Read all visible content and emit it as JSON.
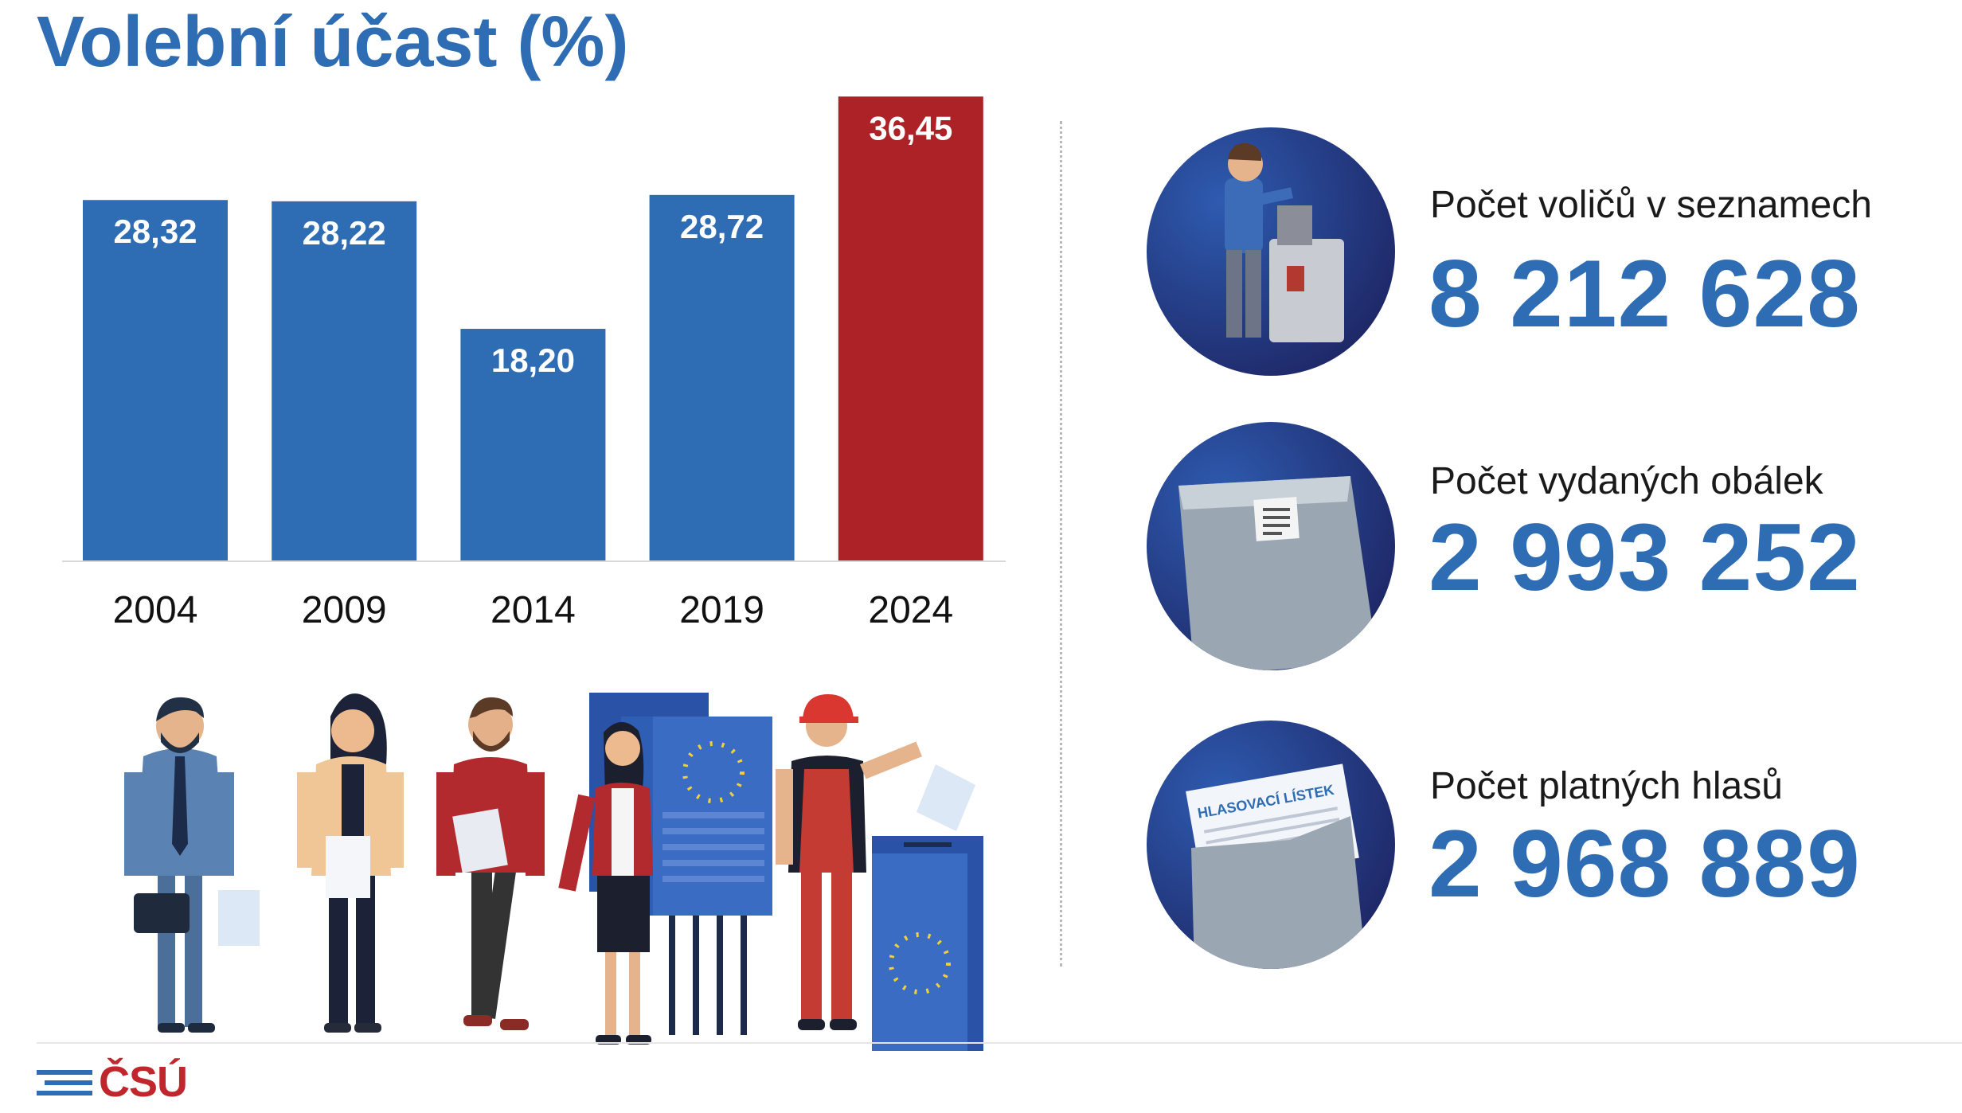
{
  "title": "Volební účast (%)",
  "chart_data": {
    "type": "bar",
    "categories": [
      "2004",
      "2009",
      "2014",
      "2019",
      "2024"
    ],
    "values": [
      28.32,
      28.22,
      18.2,
      28.72,
      36.45
    ],
    "value_labels": [
      "28,32",
      "28,22",
      "18,20",
      "28,72",
      "36,45"
    ],
    "ylim": [
      0,
      40
    ],
    "colors": [
      "#2e6db4",
      "#2e6db4",
      "#2e6db4",
      "#2e6db4",
      "#ac2226"
    ],
    "grid": false,
    "legend": "none"
  },
  "stats": [
    {
      "label": "Počet voličů v seznamech",
      "value": "8 212 628",
      "icon": "voter-ballot-box-icon"
    },
    {
      "label": "Počet vydaných obálek",
      "value": "2 993 252",
      "icon": "envelope-icon"
    },
    {
      "label": "Počet platných hlasů",
      "value": "2 968 889",
      "icon": "ballot-envelope-icon"
    }
  ],
  "ballot_text": "HLASOVACÍ LÍSTEK",
  "logo": {
    "text": "ČSÚ"
  },
  "colors": {
    "accent": "#2e6db4",
    "highlight": "#ac2226",
    "circle": "#1f2a6e"
  }
}
